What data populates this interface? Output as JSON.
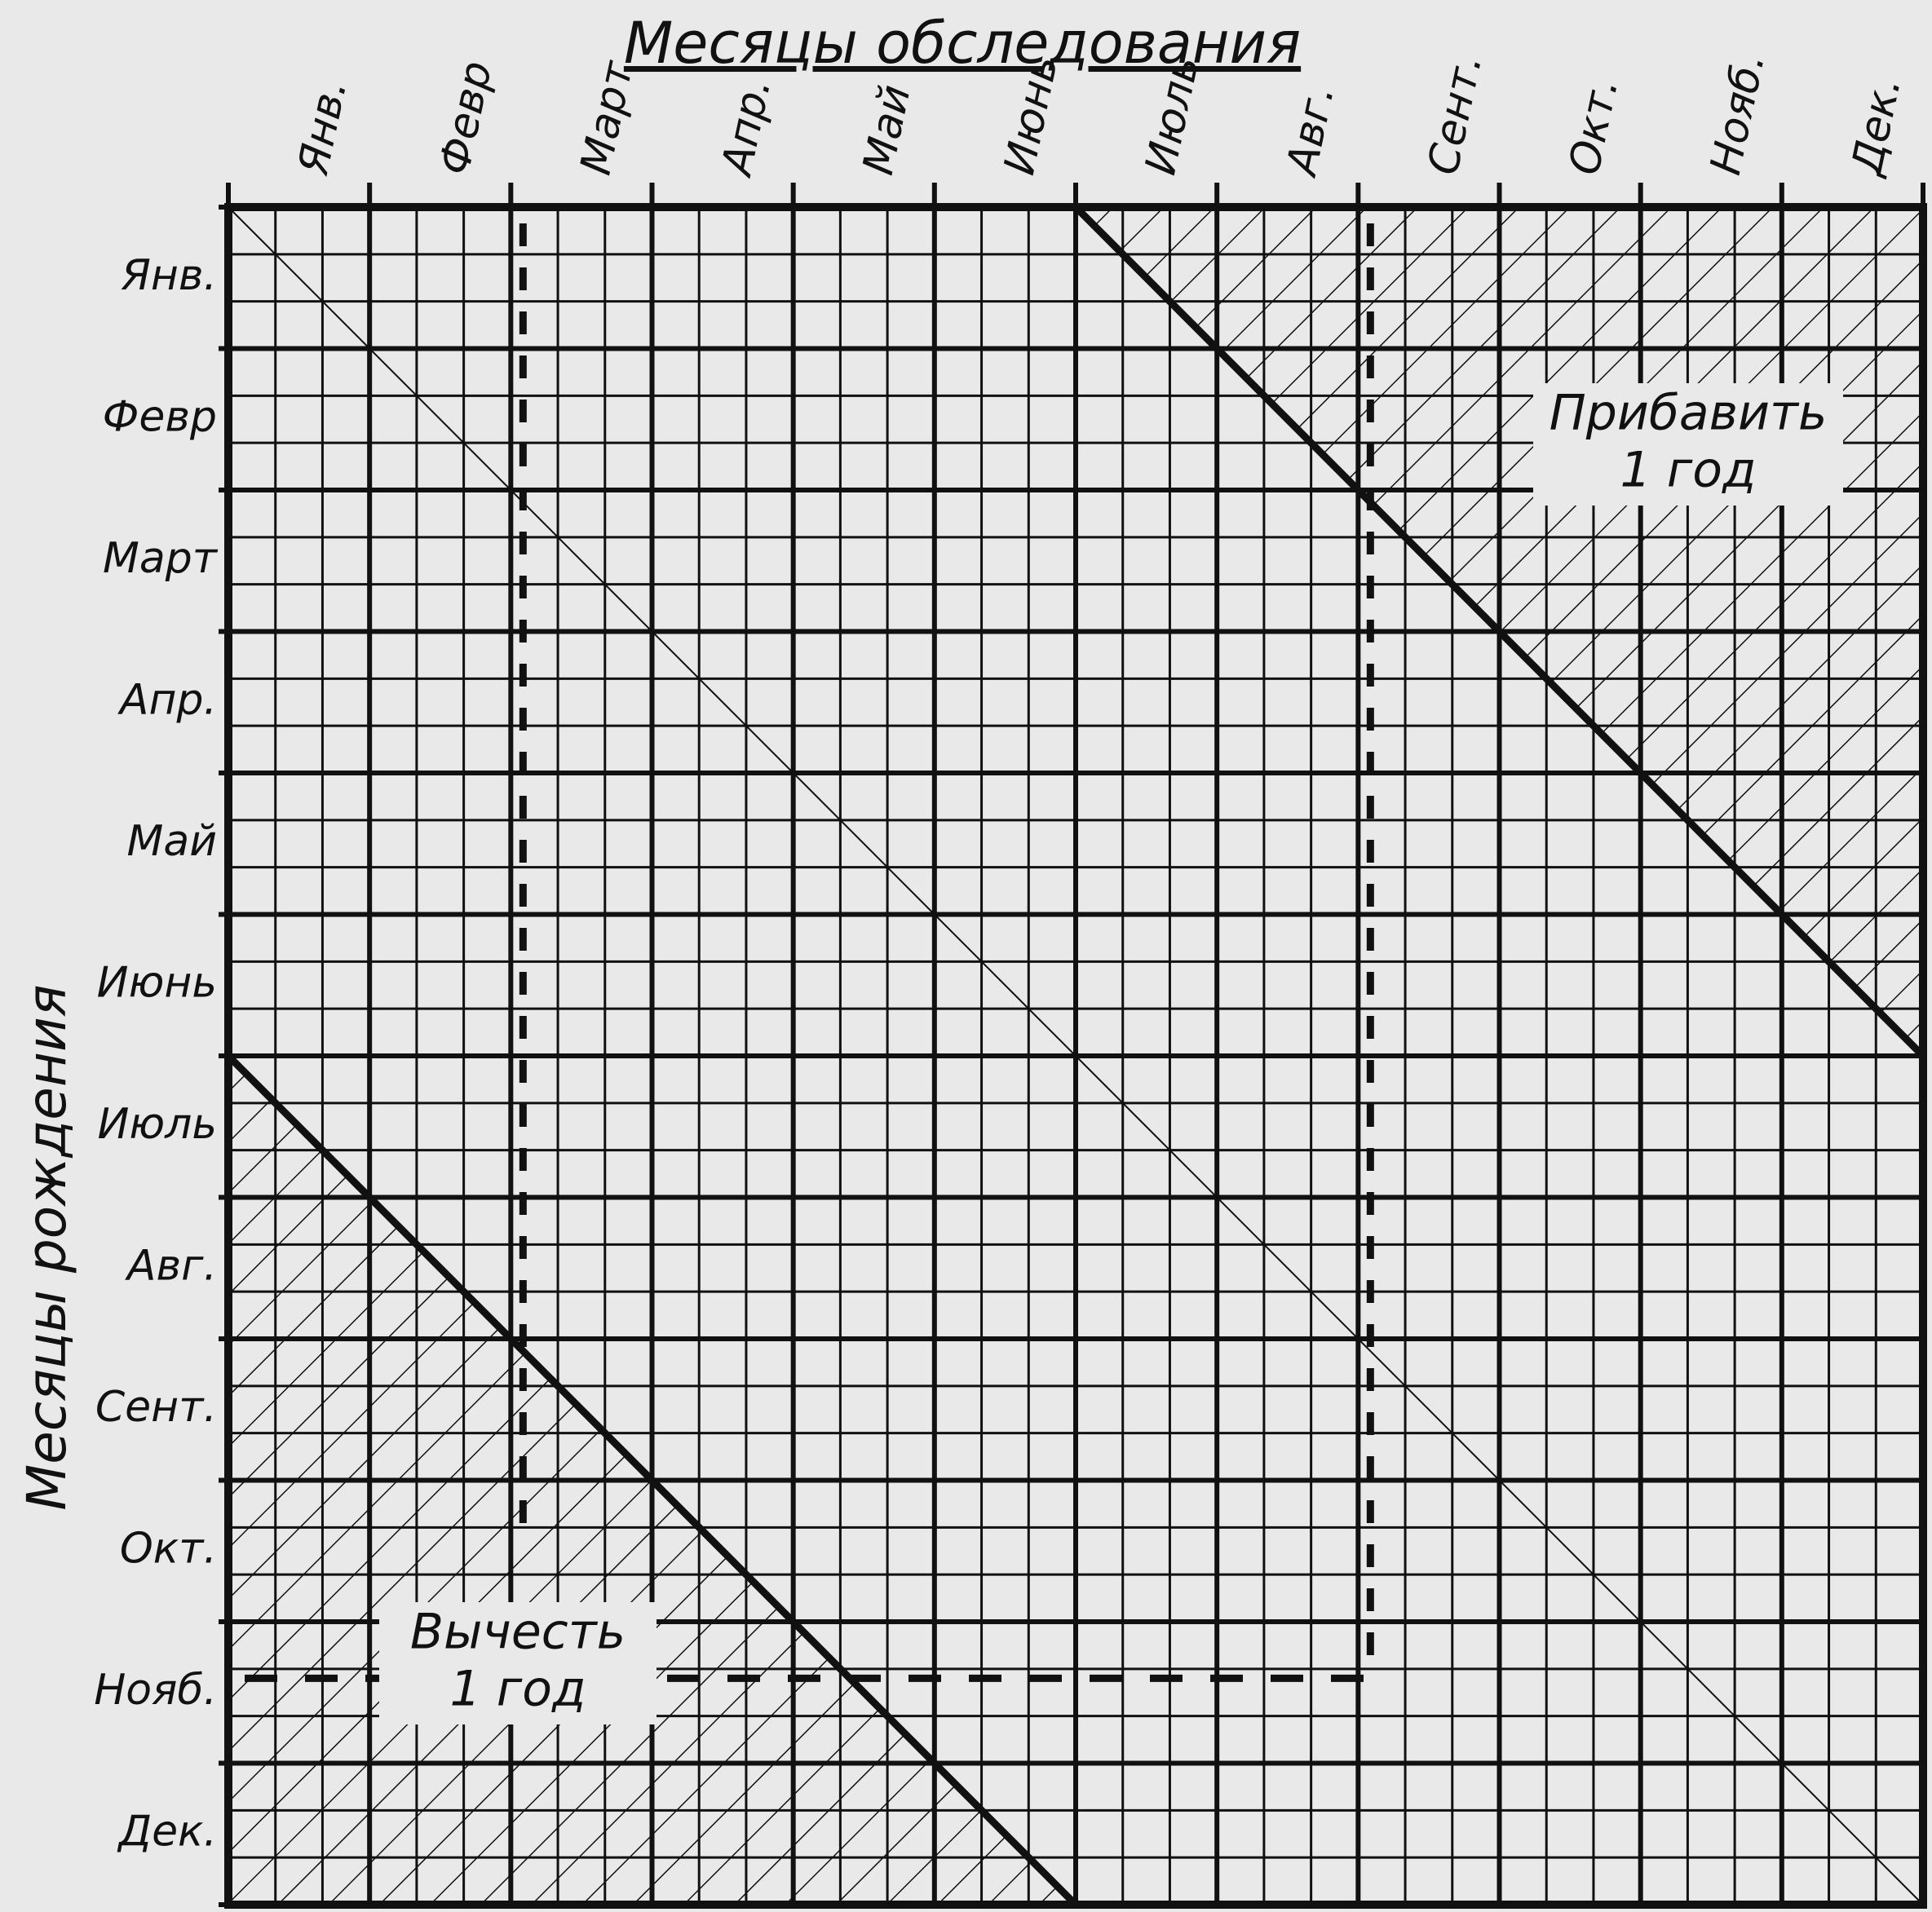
{
  "title": "Месяцы обследования",
  "y_axis_title": "Месяцы рождения",
  "columns": [
    "Янв.",
    "Февр",
    "Март",
    "Апр.",
    "Май",
    "Июнь",
    "Июль",
    "Авг.",
    "Сент.",
    "Окт.",
    "Нояб.",
    "Дек."
  ],
  "rows": [
    "Янв.",
    "Февр",
    "Март",
    "Апр.",
    "Май",
    "Июнь",
    "Июль",
    "Авг.",
    "Сент.",
    "Окт.",
    "Нояб.",
    "Дек."
  ],
  "annotations": {
    "add": [
      "Прибавить",
      "1 год"
    ],
    "subtract": [
      "Вычесть",
      "1 год"
    ]
  }
}
